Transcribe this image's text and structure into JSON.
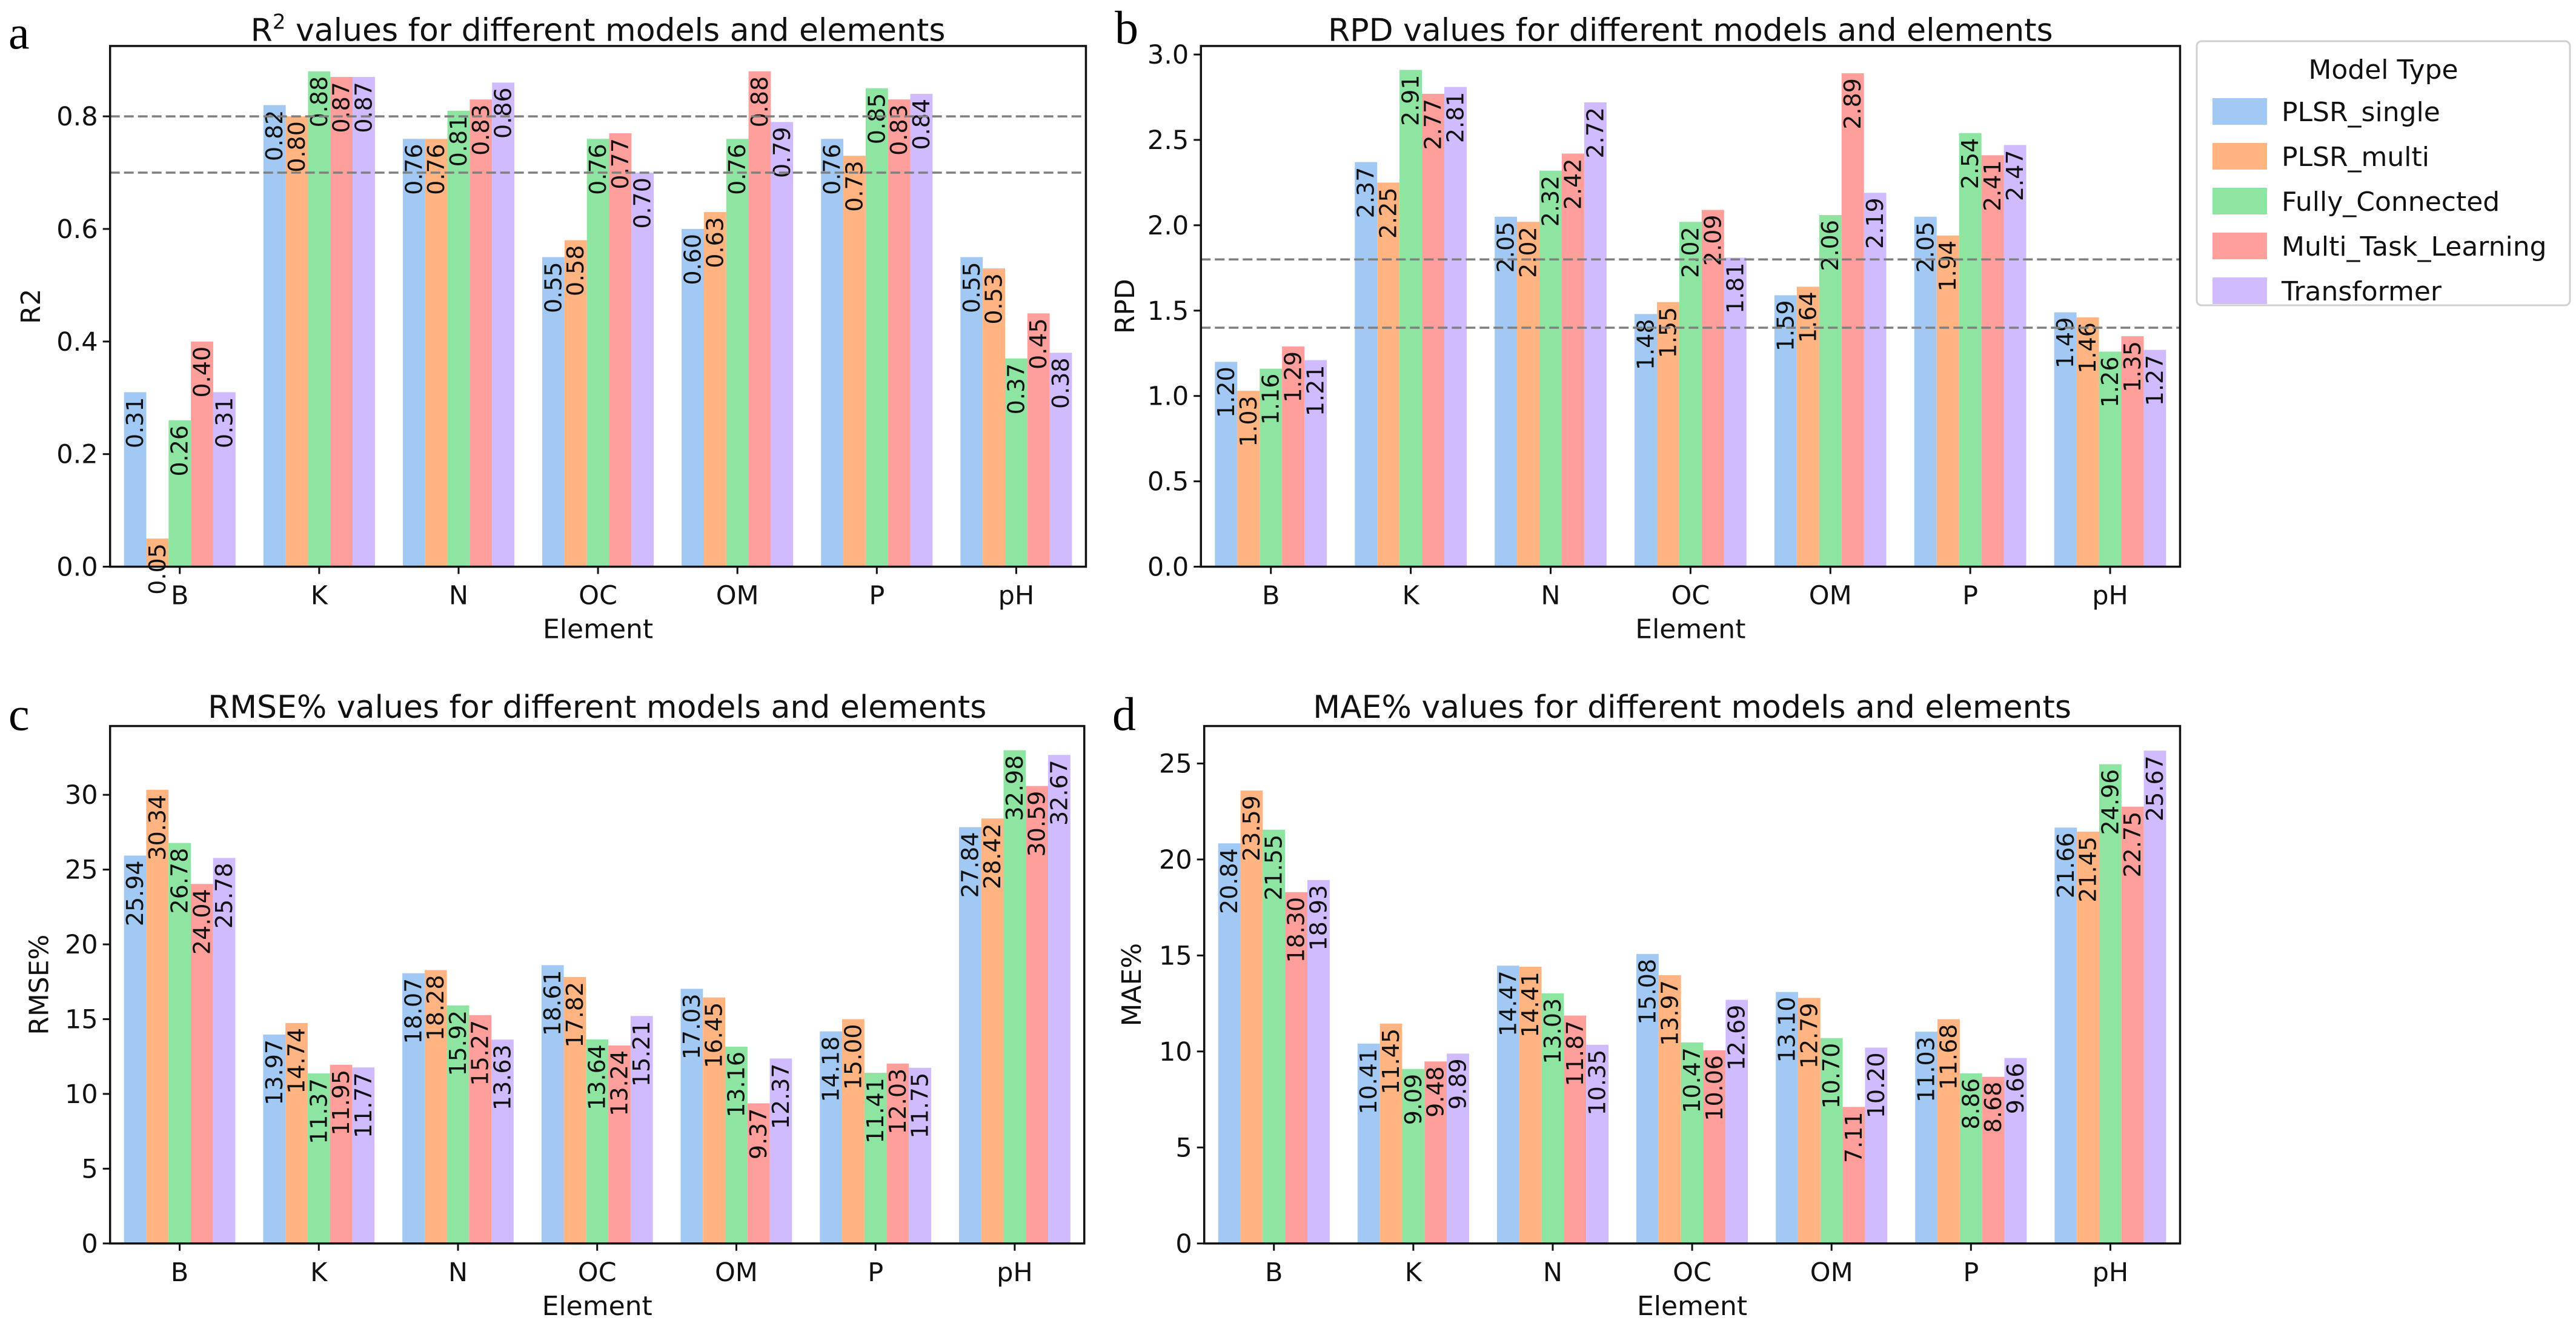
{
  "figure": {
    "legend": {
      "title": "Model Type",
      "placement": "right of panel b",
      "entries": [
        {
          "name": "PLSR_single",
          "color": "#a1c9f4"
        },
        {
          "name": "PLSR_multi",
          "color": "#ffb482"
        },
        {
          "name": "Fully_Connected",
          "color": "#8de5a1"
        },
        {
          "name": "Multi_Task_Learning",
          "color": "#ff9f9b"
        },
        {
          "name": "Transformer",
          "color": "#d0bbff"
        }
      ]
    }
  },
  "chart_data": [
    {
      "panel": "a",
      "type": "bar",
      "title": "R² values for different models and elements",
      "title_main": "R",
      "title_sup": "2",
      "title_rest": " values for different models and elements",
      "xlabel": "Element",
      "ylabel": "R2",
      "ylim": [
        0,
        0.925
      ],
      "yticks": [
        0.0,
        0.2,
        0.4,
        0.6,
        0.8
      ],
      "ytick_labels": [
        "0.0",
        "0.2",
        "0.4",
        "0.6",
        "0.8"
      ],
      "reference_lines": [
        0.8,
        0.7
      ],
      "categories": [
        "B",
        "K",
        "N",
        "OC",
        "OM",
        "P",
        "pH"
      ],
      "series": [
        {
          "name": "PLSR_single",
          "values": [
            0.31,
            0.82,
            0.76,
            0.55,
            0.6,
            0.76,
            0.55
          ]
        },
        {
          "name": "PLSR_multi",
          "values": [
            0.05,
            0.8,
            0.76,
            0.58,
            0.63,
            0.73,
            0.53
          ]
        },
        {
          "name": "Fully_Connected",
          "values": [
            0.26,
            0.88,
            0.81,
            0.76,
            0.76,
            0.85,
            0.37
          ]
        },
        {
          "name": "Multi_Task_Learning",
          "values": [
            0.4,
            0.87,
            0.83,
            0.77,
            0.88,
            0.83,
            0.45
          ]
        },
        {
          "name": "Transformer",
          "values": [
            0.31,
            0.87,
            0.86,
            0.7,
            0.79,
            0.84,
            0.38
          ]
        }
      ],
      "label_format": "2dp",
      "grid": false
    },
    {
      "panel": "b",
      "type": "bar",
      "title": "RPD values for different models and elements",
      "xlabel": "Element",
      "ylabel": "RPD",
      "ylim": [
        0,
        3.05
      ],
      "yticks": [
        0.0,
        0.5,
        1.0,
        1.5,
        2.0,
        2.5,
        3.0
      ],
      "ytick_labels": [
        "0.0",
        "0.5",
        "1.0",
        "1.5",
        "2.0",
        "2.5",
        "3.0"
      ],
      "reference_lines": [
        1.8,
        1.4
      ],
      "categories": [
        "B",
        "K",
        "N",
        "OC",
        "OM",
        "P",
        "pH"
      ],
      "series": [
        {
          "name": "PLSR_single",
          "values": [
            1.2,
            2.37,
            2.05,
            1.48,
            1.59,
            2.05,
            1.49
          ]
        },
        {
          "name": "PLSR_multi",
          "values": [
            1.03,
            2.25,
            2.02,
            1.55,
            1.64,
            1.94,
            1.46
          ]
        },
        {
          "name": "Fully_Connected",
          "values": [
            1.16,
            2.91,
            2.32,
            2.02,
            2.06,
            2.54,
            1.26
          ]
        },
        {
          "name": "Multi_Task_Learning",
          "values": [
            1.29,
            2.77,
            2.42,
            2.09,
            2.89,
            2.41,
            1.35
          ]
        },
        {
          "name": "Transformer",
          "values": [
            1.21,
            2.81,
            2.72,
            1.81,
            2.19,
            2.47,
            1.27
          ]
        }
      ],
      "label_format": "2dp",
      "grid": false
    },
    {
      "panel": "c",
      "type": "bar",
      "title": "RMSE% values for different models and elements",
      "xlabel": "Element",
      "ylabel": "RMSE%",
      "ylim": [
        0,
        34.6
      ],
      "yticks": [
        0,
        5,
        10,
        15,
        20,
        25,
        30
      ],
      "ytick_labels": [
        "0",
        "5",
        "10",
        "15",
        "20",
        "25",
        "30"
      ],
      "reference_lines": [],
      "categories": [
        "B",
        "K",
        "N",
        "OC",
        "OM",
        "P",
        "pH"
      ],
      "series": [
        {
          "name": "PLSR_single",
          "values": [
            25.94,
            13.97,
            18.07,
            18.61,
            17.03,
            14.18,
            27.84
          ]
        },
        {
          "name": "PLSR_multi",
          "values": [
            30.34,
            14.74,
            18.28,
            17.82,
            16.45,
            15.0,
            28.42
          ]
        },
        {
          "name": "Fully_Connected",
          "values": [
            26.78,
            11.37,
            15.92,
            13.64,
            13.16,
            11.41,
            32.98
          ]
        },
        {
          "name": "Multi_Task_Learning",
          "values": [
            24.04,
            11.95,
            15.27,
            13.24,
            9.37,
            12.03,
            30.59
          ]
        },
        {
          "name": "Transformer",
          "values": [
            25.78,
            11.77,
            13.63,
            15.21,
            12.37,
            11.75,
            32.67
          ]
        }
      ],
      "label_overrides": {
        "Multi_Task_Learning": {
          "6": "30.59"
        }
      },
      "label_format": "2dp",
      "grid": false
    },
    {
      "panel": "d",
      "type": "bar",
      "title": "MAE% values for different models and elements",
      "xlabel": "Element",
      "ylabel": "MAE%",
      "ylim": [
        0,
        26.95
      ],
      "yticks": [
        0,
        5,
        10,
        15,
        20,
        25
      ],
      "ytick_labels": [
        "0",
        "5",
        "10",
        "15",
        "20",
        "25"
      ],
      "reference_lines": [],
      "categories": [
        "B",
        "K",
        "N",
        "OC",
        "OM",
        "P",
        "pH"
      ],
      "series": [
        {
          "name": "PLSR_single",
          "values": [
            20.84,
            10.41,
            14.47,
            15.08,
            13.1,
            11.03,
            21.66
          ]
        },
        {
          "name": "PLSR_multi",
          "values": [
            23.59,
            11.45,
            14.41,
            13.97,
            12.79,
            11.68,
            21.45
          ]
        },
        {
          "name": "Fully_Connected",
          "values": [
            21.55,
            9.09,
            13.03,
            10.47,
            10.7,
            8.86,
            24.96
          ]
        },
        {
          "name": "Multi_Task_Learning",
          "values": [
            18.3,
            9.48,
            11.87,
            10.06,
            7.11,
            8.68,
            22.75
          ]
        },
        {
          "name": "Transformer",
          "values": [
            18.93,
            9.89,
            10.35,
            12.69,
            10.2,
            9.66,
            25.67
          ]
        }
      ],
      "label_format": "2dp",
      "grid": false
    }
  ]
}
